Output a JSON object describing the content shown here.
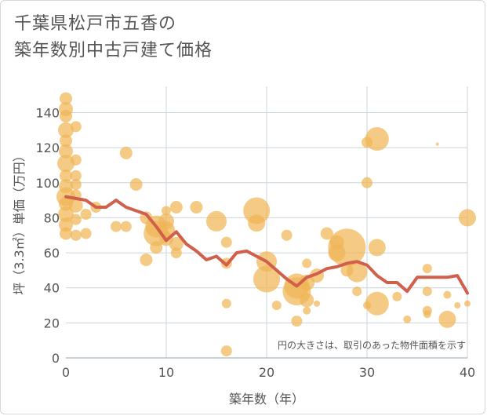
{
  "title_lines": [
    "千葉県松戸市五香の",
    "築年数別中古戸建て価格"
  ],
  "chart_data": {
    "type": "scatter",
    "title": "千葉県松戸市五香の築年数別中古戸建て価格",
    "xlabel": "築年数（年）",
    "ylabel": "坪（3.3㎡）単価（万円）",
    "xlim": [
      0,
      40
    ],
    "ylim": [
      0,
      155
    ],
    "xticks": [
      0,
      10,
      20,
      30,
      40
    ],
    "yticks": [
      0,
      20,
      40,
      60,
      80,
      100,
      120,
      140
    ],
    "grid": true,
    "note": "円の大きさは、取引のあった物件面積を示す",
    "colors": {
      "bubble": "#f0b556",
      "line": "#d0604b",
      "grid": "#c9d5dc",
      "text": "#555555"
    },
    "bubbles": [
      {
        "x": 0,
        "y": 148,
        "s": 8
      },
      {
        "x": 0,
        "y": 142,
        "s": 9
      },
      {
        "x": 0,
        "y": 138,
        "s": 8
      },
      {
        "x": 0,
        "y": 130,
        "s": 10
      },
      {
        "x": 0,
        "y": 124,
        "s": 8
      },
      {
        "x": 0,
        "y": 118,
        "s": 9
      },
      {
        "x": 0,
        "y": 111,
        "s": 11
      },
      {
        "x": 0,
        "y": 104,
        "s": 8
      },
      {
        "x": 0,
        "y": 98,
        "s": 9
      },
      {
        "x": 0,
        "y": 92,
        "s": 12
      },
      {
        "x": 0,
        "y": 88,
        "s": 9
      },
      {
        "x": 0,
        "y": 82,
        "s": 10
      },
      {
        "x": 0,
        "y": 76,
        "s": 9
      },
      {
        "x": 0,
        "y": 71,
        "s": 8
      },
      {
        "x": 1,
        "y": 132,
        "s": 7
      },
      {
        "x": 1,
        "y": 113,
        "s": 7
      },
      {
        "x": 1,
        "y": 104,
        "s": 7
      },
      {
        "x": 1,
        "y": 99,
        "s": 7
      },
      {
        "x": 1,
        "y": 93,
        "s": 7
      },
      {
        "x": 1,
        "y": 87,
        "s": 9
      },
      {
        "x": 1,
        "y": 79,
        "s": 7
      },
      {
        "x": 1,
        "y": 70,
        "s": 7
      },
      {
        "x": 2,
        "y": 82,
        "s": 7
      },
      {
        "x": 2,
        "y": 71,
        "s": 7
      },
      {
        "x": 3,
        "y": 86,
        "s": 7
      },
      {
        "x": 5,
        "y": 75,
        "s": 7
      },
      {
        "x": 6,
        "y": 117,
        "s": 8
      },
      {
        "x": 6,
        "y": 75,
        "s": 7
      },
      {
        "x": 7,
        "y": 99,
        "s": 8
      },
      {
        "x": 8,
        "y": 80,
        "s": 8
      },
      {
        "x": 8,
        "y": 56,
        "s": 8
      },
      {
        "x": 9,
        "y": 75,
        "s": 14
      },
      {
        "x": 9,
        "y": 71,
        "s": 16
      },
      {
        "x": 9,
        "y": 63,
        "s": 8
      },
      {
        "x": 10,
        "y": 84,
        "s": 6
      },
      {
        "x": 10,
        "y": 78,
        "s": 10
      },
      {
        "x": 10,
        "y": 73,
        "s": 11
      },
      {
        "x": 10,
        "y": 68,
        "s": 9
      },
      {
        "x": 11,
        "y": 86,
        "s": 8
      },
      {
        "x": 11,
        "y": 65,
        "s": 9
      },
      {
        "x": 11,
        "y": 60,
        "s": 7
      },
      {
        "x": 13,
        "y": 86,
        "s": 8
      },
      {
        "x": 15,
        "y": 78,
        "s": 13
      },
      {
        "x": 16,
        "y": 66,
        "s": 7
      },
      {
        "x": 16,
        "y": 54,
        "s": 7
      },
      {
        "x": 16,
        "y": 31,
        "s": 6
      },
      {
        "x": 16,
        "y": 4,
        "s": 7
      },
      {
        "x": 19,
        "y": 84,
        "s": 17
      },
      {
        "x": 19,
        "y": 77,
        "s": 11
      },
      {
        "x": 20,
        "y": 55,
        "s": 13
      },
      {
        "x": 20,
        "y": 45,
        "s": 17
      },
      {
        "x": 21,
        "y": 30,
        "s": 6
      },
      {
        "x": 22,
        "y": 70,
        "s": 7
      },
      {
        "x": 23,
        "y": 41,
        "s": 16
      },
      {
        "x": 23,
        "y": 38,
        "s": 18
      },
      {
        "x": 23,
        "y": 21,
        "s": 7
      },
      {
        "x": 24,
        "y": 54,
        "s": 6
      },
      {
        "x": 24,
        "y": 43,
        "s": 10
      },
      {
        "x": 24,
        "y": 33,
        "s": 9
      },
      {
        "x": 24,
        "y": 27,
        "s": 5
      },
      {
        "x": 25,
        "y": 47,
        "s": 9
      },
      {
        "x": 25,
        "y": 31,
        "s": 4
      },
      {
        "x": 26,
        "y": 71,
        "s": 8
      },
      {
        "x": 27,
        "y": 66,
        "s": 9
      },
      {
        "x": 27,
        "y": 60,
        "s": 11
      },
      {
        "x": 28,
        "y": 63,
        "s": 24
      },
      {
        "x": 28,
        "y": 50,
        "s": 8
      },
      {
        "x": 29,
        "y": 49,
        "s": 13
      },
      {
        "x": 29,
        "y": 38,
        "s": 6
      },
      {
        "x": 30,
        "y": 123,
        "s": 7
      },
      {
        "x": 30,
        "y": 100,
        "s": 7
      },
      {
        "x": 30,
        "y": 30,
        "s": 5
      },
      {
        "x": 31,
        "y": 125,
        "s": 15
      },
      {
        "x": 31,
        "y": 63,
        "s": 11
      },
      {
        "x": 31,
        "y": 31,
        "s": 15
      },
      {
        "x": 33,
        "y": 35,
        "s": 6
      },
      {
        "x": 34,
        "y": 22,
        "s": 5
      },
      {
        "x": 36,
        "y": 51,
        "s": 6
      },
      {
        "x": 36,
        "y": 38,
        "s": 6
      },
      {
        "x": 36,
        "y": 27,
        "s": 6
      },
      {
        "x": 36,
        "y": 25,
        "s": 5
      },
      {
        "x": 37,
        "y": 122,
        "s": 2
      },
      {
        "x": 38,
        "y": 36,
        "s": 5
      },
      {
        "x": 38,
        "y": 22,
        "s": 11
      },
      {
        "x": 39,
        "y": 30,
        "s": 4
      },
      {
        "x": 40,
        "y": 80,
        "s": 11
      },
      {
        "x": 40,
        "y": 31,
        "s": 4
      }
    ],
    "series": [
      {
        "type": "line",
        "x": [
          0,
          1,
          2,
          3,
          4,
          5,
          6,
          7,
          8,
          9,
          10,
          11,
          12,
          13,
          14,
          15,
          16,
          17,
          18,
          19,
          20,
          21,
          22,
          23,
          24,
          25,
          26,
          27,
          28,
          29,
          30,
          31,
          32,
          33,
          34,
          35,
          36,
          37,
          38,
          39,
          40
        ],
        "values": [
          92,
          91,
          90,
          86,
          86,
          90,
          86,
          84,
          82,
          75,
          67,
          72,
          65,
          61,
          56,
          58,
          53,
          60,
          61,
          58,
          55,
          50,
          45,
          41,
          46,
          48,
          51,
          52,
          54,
          55,
          53,
          47,
          43,
          43,
          38,
          46,
          46,
          46,
          46,
          47,
          37
        ]
      }
    ]
  }
}
